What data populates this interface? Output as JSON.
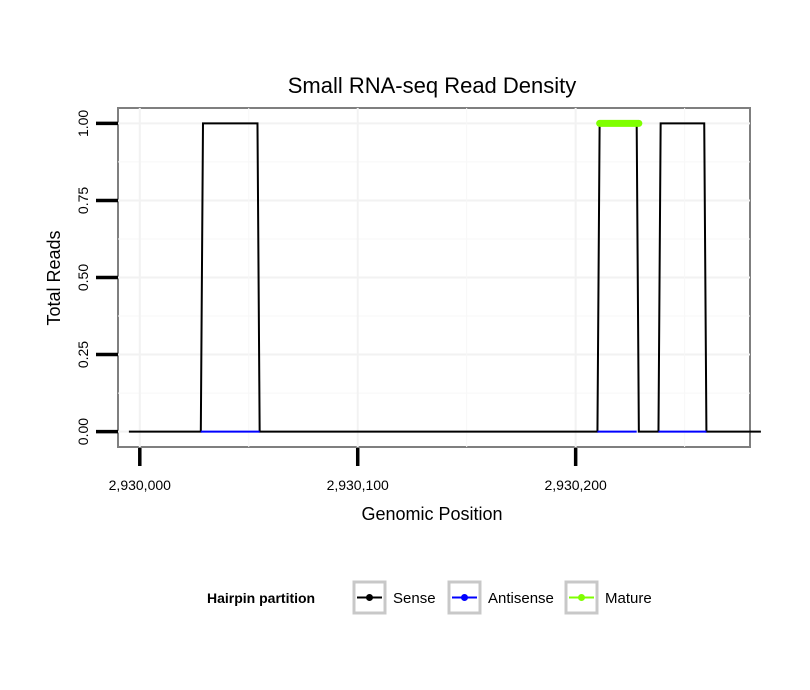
{
  "chart_data": {
    "type": "line",
    "title": "Small RNA-seq Read Density",
    "xlabel": "Genomic Position",
    "ylabel": "Total Reads",
    "xlim": [
      2929990,
      2930280
    ],
    "ylim": [
      -0.05,
      1.05
    ],
    "x_ticks": [
      2930000,
      2930100,
      2930200
    ],
    "x_tick_labels": [
      "2,930,000",
      "2,930,100",
      "2,930,200"
    ],
    "y_ticks": [
      0,
      0.25,
      0.5,
      0.75,
      1.0
    ],
    "y_tick_labels": [
      "0.00",
      "0.25",
      "0.50",
      "0.75",
      "1.00"
    ],
    "grid": true,
    "legend": {
      "title": "Hairpin partition",
      "position": "bottom",
      "entries": [
        {
          "label": "Sense",
          "color": "#000000"
        },
        {
          "label": "Antisense",
          "color": "#0000ff"
        },
        {
          "label": "Mature",
          "color": "#7fff00"
        }
      ]
    },
    "series": [
      {
        "name": "Sense",
        "color": "#000000",
        "x": [
          2929995,
          2930028,
          2930029,
          2930054,
          2930055,
          2930210,
          2930211,
          2930228,
          2930229,
          2930238,
          2930239,
          2930259,
          2930260,
          2930285
        ],
        "y": [
          0,
          0,
          1,
          1,
          0,
          0,
          1,
          1,
          0,
          0,
          1,
          1,
          0,
          0
        ]
      },
      {
        "name": "Antisense",
        "color": "#0000ff",
        "x": [
          2930028,
          2930055,
          2930210,
          2930228,
          2930238,
          2930260
        ],
        "y": [
          0,
          0,
          0,
          0,
          0,
          0
        ],
        "segments": [
          [
            0,
            1
          ],
          [
            2,
            3
          ],
          [
            4,
            5
          ]
        ]
      },
      {
        "name": "Mature",
        "color": "#7fff00",
        "x": [
          2930211,
          2930229
        ],
        "y": [
          1,
          1
        ]
      }
    ]
  }
}
